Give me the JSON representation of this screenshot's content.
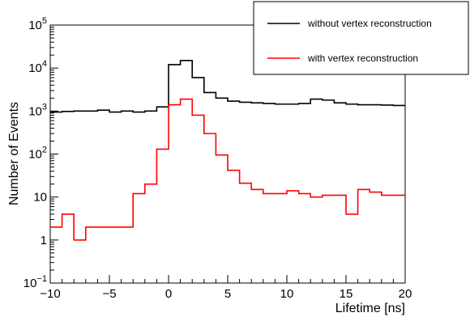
{
  "chart_data": {
    "type": "line",
    "style": "step-histogram",
    "xlabel": "Lifetime [ns]",
    "ylabel": "Number of Events",
    "xlim": [
      -10,
      20
    ],
    "ylim": [
      0.1,
      100000
    ],
    "yscale": "log",
    "legend_position": "top-right",
    "x_ticks": [
      -10,
      -5,
      0,
      5,
      10,
      15,
      20
    ],
    "y_ticks": [
      {
        "value": 0.1,
        "base": "10",
        "exp": "−1"
      },
      {
        "value": 1,
        "base": "1",
        "exp": ""
      },
      {
        "value": 10,
        "base": "10",
        "exp": ""
      },
      {
        "value": 100,
        "base": "10",
        "exp": "2"
      },
      {
        "value": 1000,
        "base": "10",
        "exp": "3"
      },
      {
        "value": 10000,
        "base": "10",
        "exp": "4"
      },
      {
        "value": 100000,
        "base": "10",
        "exp": "5"
      }
    ],
    "series": [
      {
        "name": "without vertex reconstruction",
        "color": "#000000",
        "bin_edges": [
          -10,
          -9,
          -8,
          -7,
          -6,
          -5,
          -4,
          -3,
          -2,
          -1,
          0,
          1,
          2,
          3,
          4,
          5,
          6,
          7,
          8,
          9,
          10,
          11,
          12,
          13,
          14,
          15,
          16,
          17,
          18,
          19,
          20
        ],
        "values": [
          950,
          980,
          1000,
          1000,
          1050,
          950,
          1000,
          950,
          1000,
          1250,
          12000,
          15000,
          6000,
          2700,
          2000,
          1700,
          1600,
          1550,
          1500,
          1450,
          1450,
          1500,
          1900,
          1800,
          1550,
          1450,
          1400,
          1400,
          1380,
          1350
        ]
      },
      {
        "name": "with vertex reconstruction",
        "color": "#ff0000",
        "bin_edges": [
          -10,
          -9,
          -8,
          -7,
          -6,
          -5,
          -4,
          -3,
          -2,
          -1,
          0,
          1,
          2,
          3,
          4,
          5,
          6,
          7,
          8,
          9,
          10,
          11,
          12,
          13,
          14,
          15,
          16,
          17,
          18,
          19,
          20
        ],
        "values": [
          2,
          4,
          1,
          2,
          2,
          2,
          2,
          12,
          20,
          130,
          1400,
          1900,
          800,
          300,
          95,
          42,
          21,
          15,
          12,
          12,
          14,
          12,
          10,
          11,
          11,
          4,
          15,
          13,
          11,
          11
        ]
      }
    ]
  }
}
